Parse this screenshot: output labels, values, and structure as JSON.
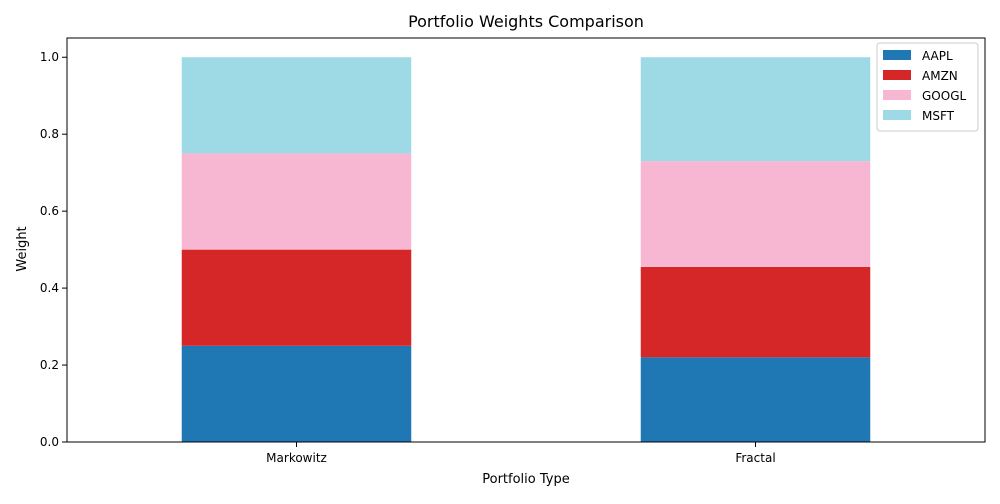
{
  "chart_data": {
    "type": "bar",
    "stacked": true,
    "title": "Portfolio Weights Comparison",
    "xlabel": "Portfolio Type",
    "ylabel": "Weight",
    "categories": [
      "Markowitz",
      "Fractal"
    ],
    "ylim": [
      0,
      1.05
    ],
    "yticks": [
      "0.0",
      "0.2",
      "0.4",
      "0.6",
      "0.8",
      "1.0"
    ],
    "grid": false,
    "legend_position": "top-right",
    "series": [
      {
        "name": "AAPL",
        "values": [
          0.25,
          0.22
        ],
        "color": "#1f77b4"
      },
      {
        "name": "AMZN",
        "values": [
          0.25,
          0.235
        ],
        "color": "#d62728"
      },
      {
        "name": "GOOGL",
        "values": [
          0.25,
          0.275
        ],
        "color": "#f7b6d2"
      },
      {
        "name": "MSFT",
        "values": [
          0.25,
          0.27
        ],
        "color": "#9edae5"
      }
    ]
  }
}
